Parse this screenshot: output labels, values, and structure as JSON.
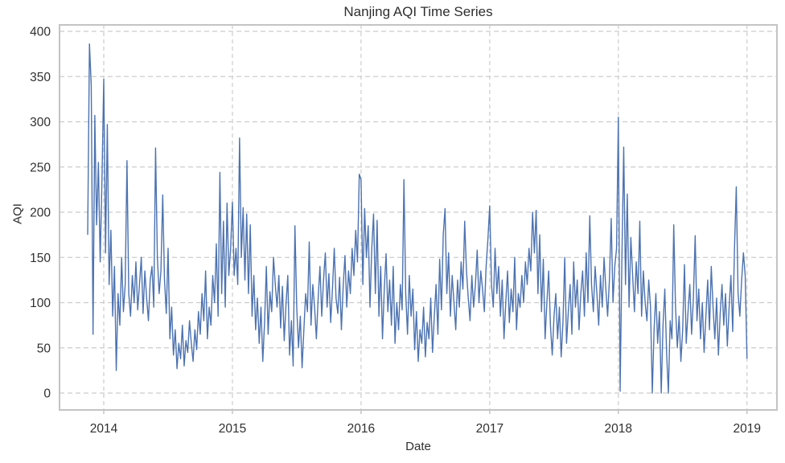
{
  "chart_data": {
    "type": "line",
    "title": "Nanjing AQI Time Series",
    "xlabel": "Date",
    "ylabel": "AQI",
    "series_name": "AQI",
    "line_color": "#4C72B0",
    "grid": "dashed",
    "grid_color": "#cccccc",
    "spine_color": "#c4c4c4",
    "x_tick_labels": [
      "2014",
      "2015",
      "2016",
      "2017",
      "2018",
      "2019"
    ],
    "x_tick_years": [
      2014,
      2015,
      2016,
      2017,
      2018,
      2019
    ],
    "y_tick_labels": [
      "0",
      "50",
      "100",
      "150",
      "200",
      "250",
      "300",
      "350",
      "400"
    ],
    "y_tick_values": [
      0,
      50,
      100,
      150,
      200,
      250,
      300,
      350,
      400
    ],
    "xlim": [
      2013.656,
      2019.233
    ],
    "ylim": [
      -19,
      426
    ],
    "x_start": 2013.875,
    "x_step_years": 0.0138889,
    "values": [
      175,
      386,
      340,
      65,
      307,
      186,
      255,
      145,
      236,
      347,
      155,
      297,
      120,
      180,
      85,
      140,
      25,
      110,
      75,
      150,
      90,
      120,
      257,
      110,
      85,
      130,
      100,
      145,
      92,
      120,
      150,
      88,
      135,
      105,
      80,
      125,
      140,
      95,
      271,
      150,
      110,
      135,
      219,
      125,
      88,
      160,
      60,
      95,
      42,
      70,
      27,
      55,
      38,
      75,
      30,
      58,
      45,
      80,
      55,
      35,
      70,
      48,
      90,
      65,
      110,
      80,
      135,
      60,
      95,
      75,
      130,
      100,
      165,
      85,
      244,
      110,
      190,
      95,
      210,
      130,
      160,
      211,
      130,
      160,
      120,
      282,
      150,
      205,
      125,
      198,
      110,
      186,
      85,
      130,
      70,
      105,
      55,
      95,
      35,
      78,
      140,
      65,
      112,
      90,
      150,
      120,
      95,
      130,
      72,
      118,
      58,
      98,
      130,
      42,
      80,
      30,
      185,
      95,
      50,
      85,
      28,
      70,
      110,
      90,
      167,
      75,
      120,
      95,
      60,
      105,
      140,
      85,
      125,
      155,
      95,
      132,
      78,
      115,
      160,
      105,
      88,
      128,
      70,
      118,
      152,
      95,
      135,
      110,
      160,
      130,
      180,
      145,
      242,
      236,
      120,
      204,
      150,
      185,
      95,
      160,
      198,
      110,
      191,
      85,
      140,
      60,
      115,
      154,
      90,
      125,
      75,
      140,
      55,
      100,
      70,
      120,
      92,
      236,
      110,
      65,
      130,
      85,
      115,
      48,
      90,
      35,
      70,
      55,
      95,
      40,
      78,
      60,
      105,
      45,
      85,
      120,
      65,
      148,
      92,
      175,
      204,
      110,
      155,
      85,
      130,
      100,
      70,
      125,
      95,
      145,
      115,
      190,
      135,
      105,
      80,
      130,
      95,
      120,
      158,
      100,
      135,
      115,
      90,
      140,
      170,
      207,
      120,
      95,
      160,
      110,
      140,
      85,
      125,
      60,
      100,
      135,
      78,
      115,
      90,
      150,
      70,
      110,
      95,
      130,
      100,
      145,
      120,
      160,
      135,
      200,
      155,
      202,
      110,
      175,
      90,
      148,
      60,
      100,
      135,
      75,
      42,
      85,
      110,
      60,
      95,
      40,
      78,
      150,
      55,
      90,
      120,
      65,
      145,
      95,
      125,
      70,
      110,
      135,
      85,
      155,
      100,
      196,
      120,
      90,
      140,
      110,
      75,
      130,
      95,
      150,
      115,
      85,
      125,
      193,
      100,
      140,
      160,
      305,
      2,
      150,
      272,
      120,
      220,
      95,
      172,
      130,
      90,
      145,
      110,
      190,
      85,
      135,
      100,
      80,
      125,
      95,
      0,
      70,
      110,
      55,
      90,
      0,
      75,
      115,
      45,
      0,
      80,
      60,
      186,
      95,
      50,
      85,
      35,
      70,
      142,
      55,
      90,
      120,
      65,
      105,
      174,
      80,
      115,
      60,
      100,
      45,
      85,
      125,
      70,
      140,
      95,
      60,
      105,
      42,
      88,
      120,
      75,
      110,
      52,
      95,
      130,
      68,
      160,
      228,
      110,
      85,
      125,
      155,
      130,
      38
    ]
  }
}
